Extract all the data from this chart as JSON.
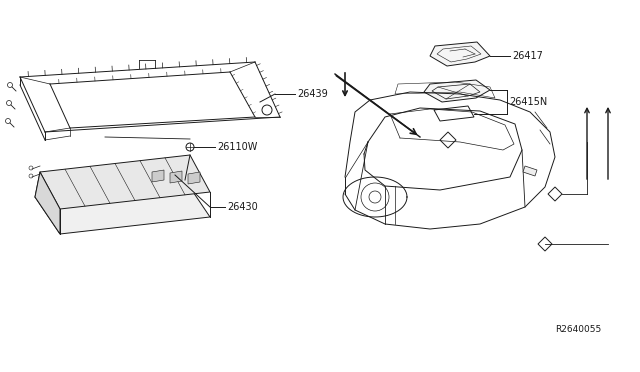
{
  "bg_color": "#ffffff",
  "line_color": "#1a1a1a",
  "label_color": "#1a1a1a",
  "diagram_ref": "R2640055",
  "figsize": [
    6.4,
    3.72
  ],
  "dpi": 100,
  "parts": {
    "26439": {
      "label": "26439"
    },
    "26110W": {
      "label": "26110W"
    },
    "26430": {
      "label": "26430"
    },
    "26417": {
      "label": "26417"
    },
    "26415N": {
      "label": "26415N"
    }
  }
}
